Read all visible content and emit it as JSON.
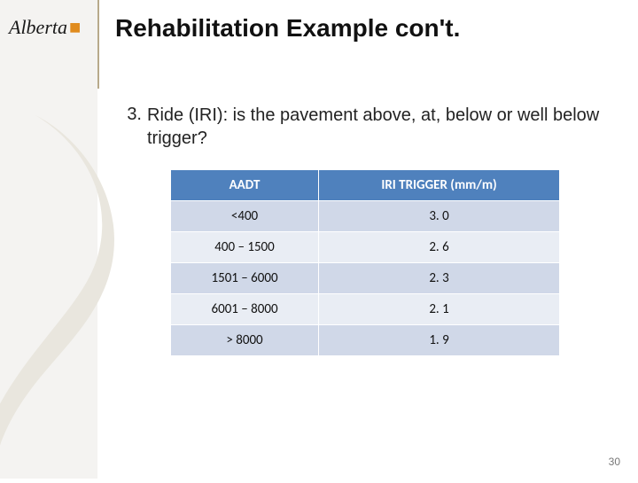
{
  "logo": {
    "text": "Alberta"
  },
  "title": "Rehabilitation Example con't.",
  "list_item": {
    "number": "3.",
    "text": "Ride (IRI): is the pavement above, at, below or well below trigger?"
  },
  "table": {
    "header_bg": "#4f81bd",
    "header_fg": "#ffffff",
    "row_alt_a": "#d0d8e8",
    "row_alt_b": "#e9edf4",
    "columns": [
      "AADT",
      "IRI TRIGGER (mm/m)"
    ],
    "rows": [
      [
        "<400",
        "3. 0"
      ],
      [
        "400 – 1500",
        "2. 6"
      ],
      [
        "1501 – 6000",
        "2. 3"
      ],
      [
        "6001 – 8000",
        "2. 1"
      ],
      [
        "> 8000",
        "1. 9"
      ]
    ]
  },
  "slide_number": "30",
  "colors": {
    "leftbar": "#f4f3f1",
    "vline": "#b7a98a",
    "watermark": "#e9e6de"
  }
}
